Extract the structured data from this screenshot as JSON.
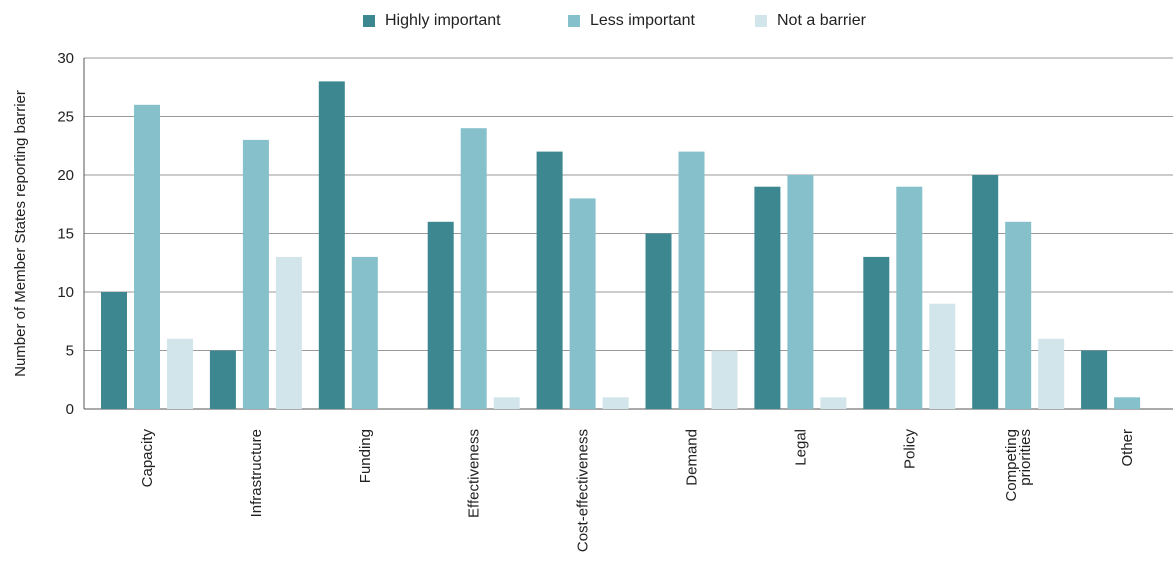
{
  "chart_data": {
    "type": "bar",
    "title": "",
    "xlabel": "",
    "ylabel": "Number of Member States reporting barrier",
    "ylim": [
      0,
      30
    ],
    "yticks": [
      0,
      5,
      10,
      15,
      20,
      25,
      30
    ],
    "grid": true,
    "legend_position": "top-center",
    "categories": [
      "Capacity",
      "Infrastructure",
      "Funding",
      "Effectiveness",
      "Cost-effectiveness",
      "Demand",
      "Legal",
      "Policy",
      "Competing priorities",
      "Other"
    ],
    "series": [
      {
        "name": "Highly important",
        "color": "#3d8790",
        "values": [
          10,
          5,
          28,
          16,
          22,
          15,
          19,
          13,
          20,
          5
        ]
      },
      {
        "name": "Less important",
        "color": "#86c0ca",
        "values": [
          26,
          23,
          13,
          24,
          18,
          22,
          20,
          19,
          16,
          1
        ]
      },
      {
        "name": "Not a barrier",
        "color": "#d2e5ea",
        "values": [
          6,
          13,
          0,
          1,
          1,
          5,
          1,
          9,
          6,
          null
        ]
      }
    ]
  },
  "legend": {
    "items": [
      {
        "label": "Highly important",
        "color": "#3d8790"
      },
      {
        "label": "Less important",
        "color": "#86c0ca"
      },
      {
        "label": "Not a barrier",
        "color": "#d2e5ea"
      }
    ]
  }
}
